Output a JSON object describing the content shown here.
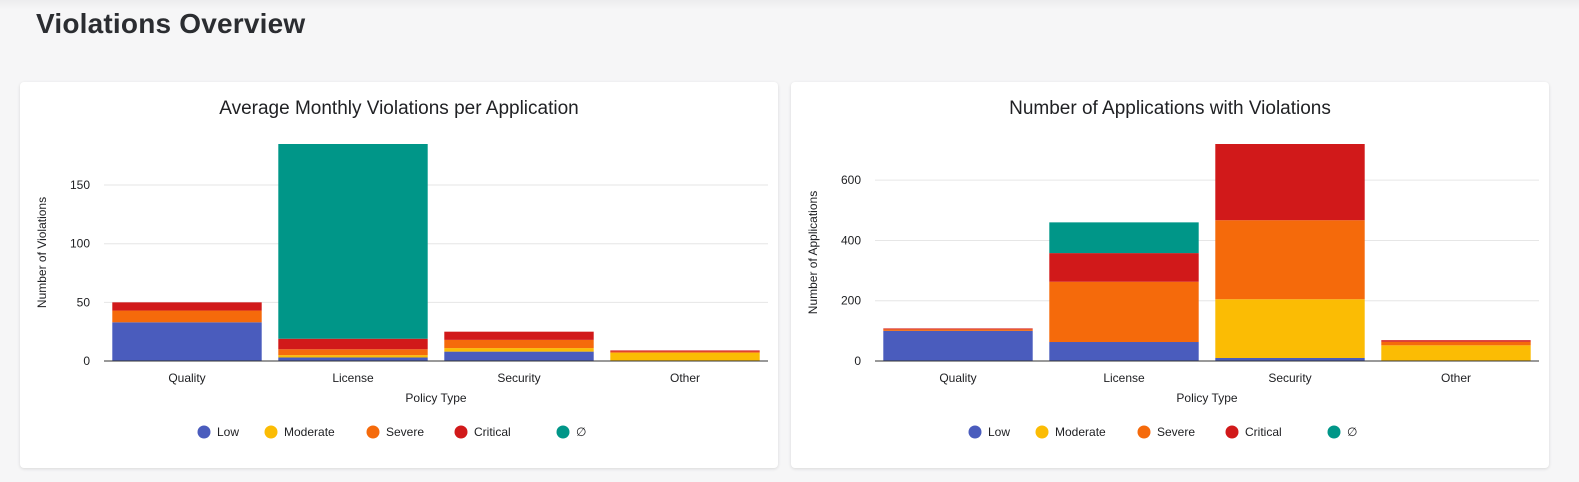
{
  "page": {
    "title": "Violations Overview"
  },
  "colors": {
    "Low": "#4a5cbd",
    "Moderate": "#fbbc04",
    "Severe": "#f56a0b",
    "Critical": "#d1191a",
    "∅": "#009688"
  },
  "chart_data": [
    {
      "type": "bar",
      "stacked": true,
      "title": "Average Monthly Violations per Application",
      "xlabel": "Policy Type",
      "ylabel": "Number of Violations",
      "categories": [
        "Quality",
        "License",
        "Security",
        "Other"
      ],
      "ylim": [
        0,
        185
      ],
      "yticks": [
        0,
        50,
        100,
        150
      ],
      "grid": true,
      "legend_position": "bottom",
      "series": [
        {
          "name": "Low",
          "values": [
            33,
            3,
            8,
            0
          ]
        },
        {
          "name": "Moderate",
          "values": [
            0,
            2,
            3,
            7
          ]
        },
        {
          "name": "Severe",
          "values": [
            10,
            5,
            7,
            1
          ]
        },
        {
          "name": "Critical",
          "values": [
            7,
            9,
            7,
            1
          ]
        },
        {
          "name": "∅",
          "values": [
            0,
            166,
            0,
            0
          ]
        }
      ]
    },
    {
      "type": "bar",
      "stacked": true,
      "title": "Number of Applications with Violations",
      "xlabel": "Policy Type",
      "ylabel": "Number of Applications",
      "categories": [
        "Quality",
        "License",
        "Security",
        "Other"
      ],
      "ylim": [
        0,
        720
      ],
      "yticks": [
        0,
        200,
        400,
        600
      ],
      "grid": true,
      "legend_position": "bottom",
      "series": [
        {
          "name": "Low",
          "values": [
            100,
            63,
            10,
            0
          ]
        },
        {
          "name": "Moderate",
          "values": [
            0,
            0,
            195,
            52
          ]
        },
        {
          "name": "Severe",
          "values": [
            5,
            200,
            262,
            12
          ]
        },
        {
          "name": "Critical",
          "values": [
            3,
            95,
            253,
            5
          ]
        },
        {
          "name": "∅",
          "values": [
            0,
            102,
            0,
            0
          ]
        }
      ]
    }
  ]
}
